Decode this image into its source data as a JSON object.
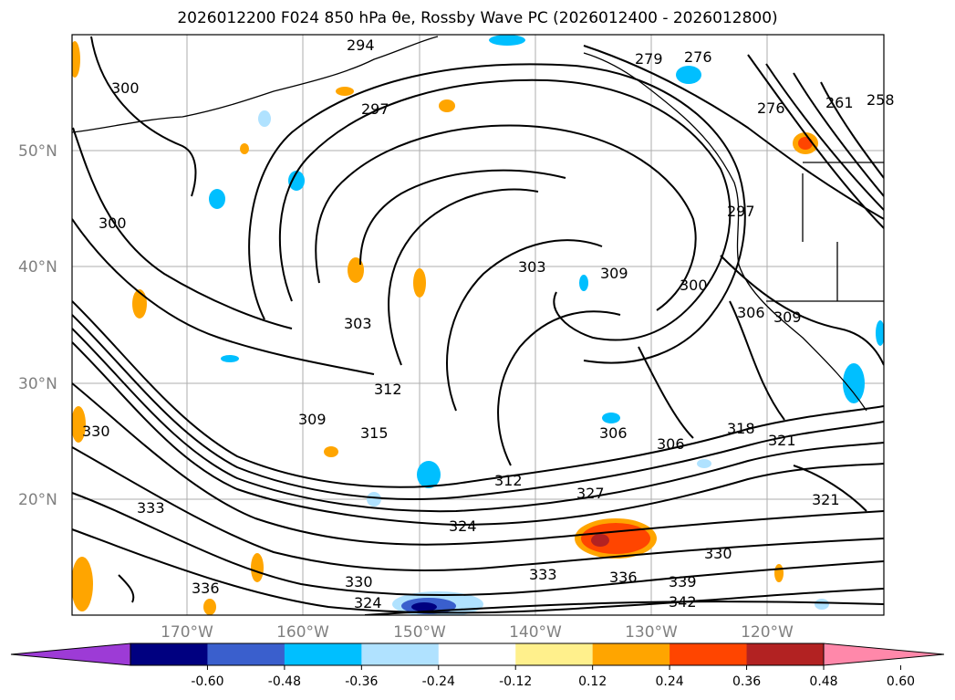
{
  "title": "2026012200 F024 850 hPa θe, Rossby Wave PC (2026012400 - 2026012800)",
  "map": {
    "projection": "PlateCarree",
    "lon_range": [
      -180,
      -110
    ],
    "lat_range": [
      10,
      60
    ],
    "gridlines": true,
    "lat_labels": [
      "50°N",
      "40°N",
      "30°N",
      "20°N"
    ],
    "lon_labels": [
      "170°W",
      "160°W",
      "150°W",
      "140°W",
      "130°W",
      "120°W"
    ],
    "contour_variable": "850 hPa θe (K)",
    "contour_labels": [
      "294",
      "297",
      "300",
      "300",
      "303",
      "303",
      "306",
      "306",
      "309",
      "309",
      "312",
      "312",
      "315",
      "318",
      "321",
      "321",
      "324",
      "324",
      "327",
      "330",
      "330",
      "330",
      "333",
      "333",
      "336",
      "336",
      "339",
      "342",
      "279",
      "276",
      "261",
      "258",
      "276",
      "297",
      "300",
      "306",
      "309"
    ]
  },
  "colorbar": {
    "colors": [
      "#9d3bd6",
      "#000080",
      "#3a5fcd",
      "#00bfff",
      "#b0e2ff",
      "#ffffff",
      "#fff08c",
      "#ffa500",
      "#ff4500",
      "#b22222",
      "#ff88aa"
    ],
    "ticks": [
      "-0.60",
      "-0.48",
      "-0.36",
      "-0.24",
      "-0.12",
      "0.12",
      "0.24",
      "0.36",
      "0.48",
      "0.60"
    ],
    "extend": "both"
  }
}
